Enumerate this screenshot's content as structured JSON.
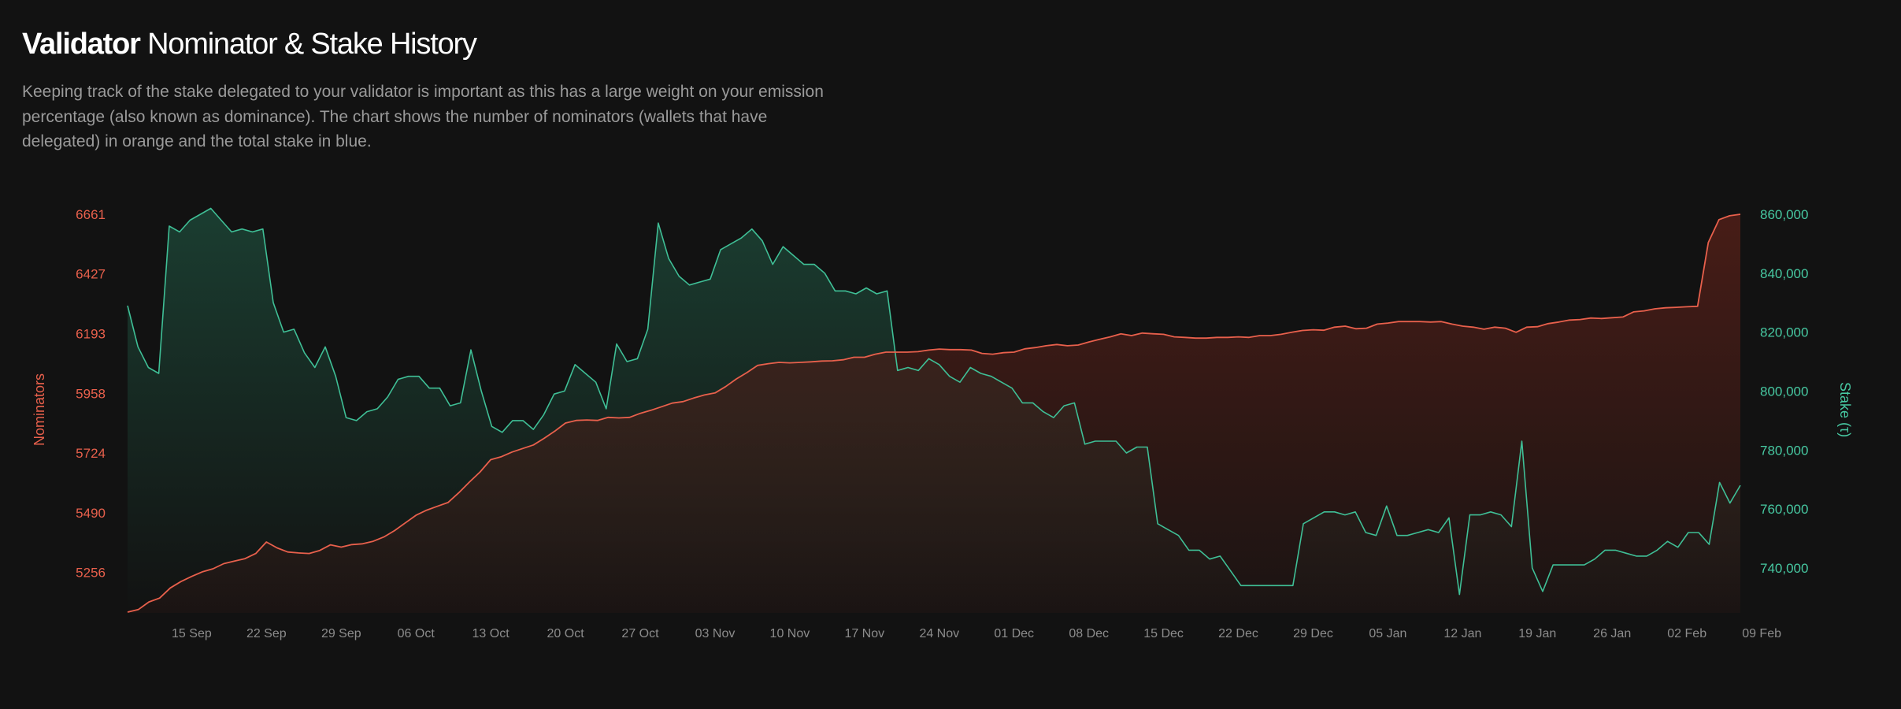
{
  "header": {
    "title_bold": "Validator",
    "title_rest": "Nominator & Stake History",
    "description": "Keeping track of the stake delegated to your validator is important as this has a large weight on your emission percentage (also known as dominance). The chart shows the number of nominators (wallets that have delegated) in orange and the total stake in blue."
  },
  "colors": {
    "nominators": "#e8604c",
    "stake": "#3fbf96",
    "background": "#121212"
  },
  "chart_data": {
    "type": "area",
    "x_ticks": [
      "15 Sep",
      "22 Sep",
      "29 Sep",
      "06 Oct",
      "13 Oct",
      "20 Oct",
      "27 Oct",
      "03 Nov",
      "10 Nov",
      "17 Nov",
      "24 Nov",
      "01 Dec",
      "08 Dec",
      "15 Dec",
      "22 Dec",
      "29 Dec",
      "05 Jan",
      "12 Jan",
      "19 Jan",
      "26 Jan",
      "02 Feb",
      "09 Feb"
    ],
    "left_axis": {
      "label": "Nominators",
      "ticks": [
        "6661",
        "6427",
        "6193",
        "5958",
        "5724",
        "5490",
        "5256"
      ],
      "range": [
        5100,
        6661
      ]
    },
    "right_axis": {
      "label": "Stake (τ)",
      "ticks": [
        "860,000",
        "840,000",
        "820,000",
        "800,000",
        "780,000",
        "760,000",
        "740,000"
      ],
      "range": [
        725000,
        860000
      ]
    },
    "grid": false,
    "series": [
      {
        "name": "Nominators",
        "axis": "left",
        "color": "#e8604c",
        "x_range": [
          "09 Sep",
          "13 Feb"
        ],
        "values": [
          5100,
          5110,
          5140,
          5155,
          5195,
          5220,
          5240,
          5258,
          5270,
          5290,
          5300,
          5310,
          5330,
          5375,
          5352,
          5336,
          5332,
          5330,
          5342,
          5364,
          5355,
          5365,
          5368,
          5378,
          5395,
          5420,
          5450,
          5480,
          5500,
          5515,
          5530,
          5568,
          5610,
          5650,
          5698,
          5710,
          5728,
          5742,
          5756,
          5782,
          5810,
          5842,
          5852,
          5854,
          5852,
          5864,
          5862,
          5864,
          5880,
          5892,
          5906,
          5920,
          5926,
          5940,
          5952,
          5960,
          5985,
          6015,
          6040,
          6068,
          6075,
          6080,
          6078,
          6080,
          6082,
          6085,
          6086,
          6090,
          6100,
          6100,
          6112,
          6120,
          6120,
          6120,
          6122,
          6128,
          6132,
          6130,
          6130,
          6128,
          6115,
          6112,
          6118,
          6120,
          6133,
          6138,
          6145,
          6150,
          6145,
          6148,
          6160,
          6170,
          6180,
          6192,
          6185,
          6195,
          6192,
          6190,
          6180,
          6178,
          6175,
          6175,
          6178,
          6178,
          6180,
          6178,
          6185,
          6185,
          6190,
          6198,
          6205,
          6208,
          6206,
          6218,
          6222,
          6212,
          6214,
          6230,
          6234,
          6240,
          6240,
          6240,
          6238,
          6240,
          6230,
          6222,
          6218,
          6210,
          6218,
          6214,
          6198,
          6218,
          6220,
          6232,
          6238,
          6246,
          6248,
          6254,
          6252,
          6255,
          6258,
          6278,
          6282,
          6290,
          6294,
          6296,
          6298,
          6300,
          6550,
          6640,
          6655,
          6661
        ]
      },
      {
        "name": "Stake (τ)",
        "axis": "right",
        "color": "#3fbf96",
        "x_range": [
          "09 Sep",
          "13 Feb"
        ],
        "values": [
          829000,
          815000,
          808000,
          806000,
          856000,
          854000,
          858000,
          860000,
          862000,
          858000,
          854000,
          855000,
          854000,
          855000,
          830000,
          820000,
          821000,
          813000,
          808000,
          815000,
          805000,
          791000,
          790000,
          793000,
          794000,
          798000,
          804000,
          805000,
          805000,
          801000,
          801000,
          795000,
          796000,
          814000,
          800000,
          788000,
          786000,
          790000,
          790000,
          787000,
          792000,
          799000,
          800000,
          809000,
          806000,
          803000,
          794000,
          816000,
          810000,
          811000,
          821000,
          857000,
          845000,
          839000,
          836000,
          837000,
          838000,
          848000,
          850000,
          852000,
          855000,
          851000,
          843000,
          849000,
          846000,
          843000,
          843000,
          840000,
          834000,
          834000,
          833000,
          835000,
          833000,
          834000,
          807000,
          808000,
          807000,
          811000,
          809000,
          805000,
          803000,
          808000,
          806000,
          805000,
          803000,
          801000,
          796000,
          796000,
          793000,
          791000,
          795000,
          796000,
          782000,
          783000,
          783000,
          783000,
          779000,
          781000,
          781000,
          755000,
          753000,
          751000,
          746000,
          746000,
          743000,
          744000,
          739000,
          734000,
          734000,
          734000,
          734000,
          734000,
          734000,
          755000,
          757000,
          759000,
          759000,
          758000,
          759000,
          752000,
          751000,
          761000,
          751000,
          751000,
          752000,
          753000,
          752000,
          757000,
          731000,
          758000,
          758000,
          759000,
          758000,
          754000,
          783000,
          740000,
          732000,
          741000,
          741000,
          741000,
          741000,
          743000,
          746000,
          746000,
          745000,
          744000,
          744000,
          746000,
          749000,
          747000,
          752000,
          752000,
          748000,
          769000,
          762000,
          768000
        ]
      }
    ]
  }
}
